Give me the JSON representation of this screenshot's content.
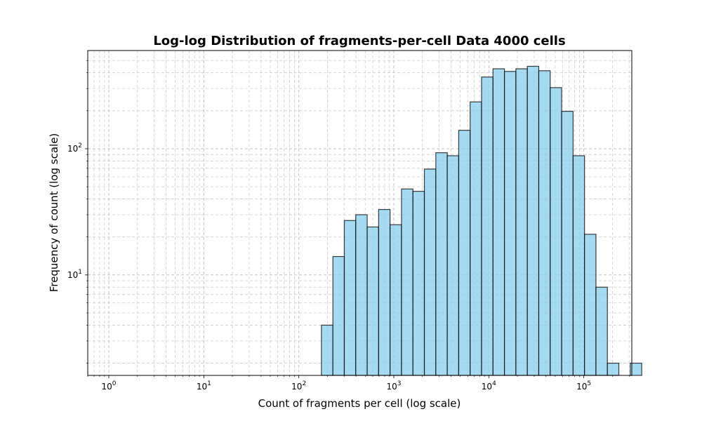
{
  "chart_data": {
    "type": "bar",
    "title": "Log-log Distribution of fragments-per-cell Data 4000 cells",
    "xlabel": "Count of fragments per cell (log scale)",
    "ylabel": "Frequency of count (log scale)",
    "x_scale": "log",
    "y_scale": "log",
    "xlim": [
      0.6,
      320000
    ],
    "ylim": [
      1.6,
      600
    ],
    "x_ticks": [
      {
        "value": 1,
        "base": "10",
        "exp": "0"
      },
      {
        "value": 10,
        "base": "10",
        "exp": "1"
      },
      {
        "value": 100,
        "base": "10",
        "exp": "2"
      },
      {
        "value": 1000,
        "base": "10",
        "exp": "3"
      },
      {
        "value": 10000,
        "base": "10",
        "exp": "4"
      },
      {
        "value": 100000,
        "base": "10",
        "exp": "5"
      }
    ],
    "y_ticks": [
      {
        "value": 10,
        "base": "10",
        "exp": "1"
      },
      {
        "value": 100,
        "base": "10",
        "exp": "2"
      }
    ],
    "grid": true,
    "bar_color": "#87CEEB",
    "bar_edge_color": "#000000",
    "bins": {
      "start": 173,
      "ratio": 1.3195,
      "counts": [
        4,
        14,
        27,
        30,
        24,
        33,
        25,
        48,
        46,
        69,
        93,
        88,
        140,
        235,
        370,
        430,
        410,
        430,
        450,
        415,
        305,
        198,
        88,
        21,
        8,
        2,
        0,
        2
      ]
    }
  }
}
